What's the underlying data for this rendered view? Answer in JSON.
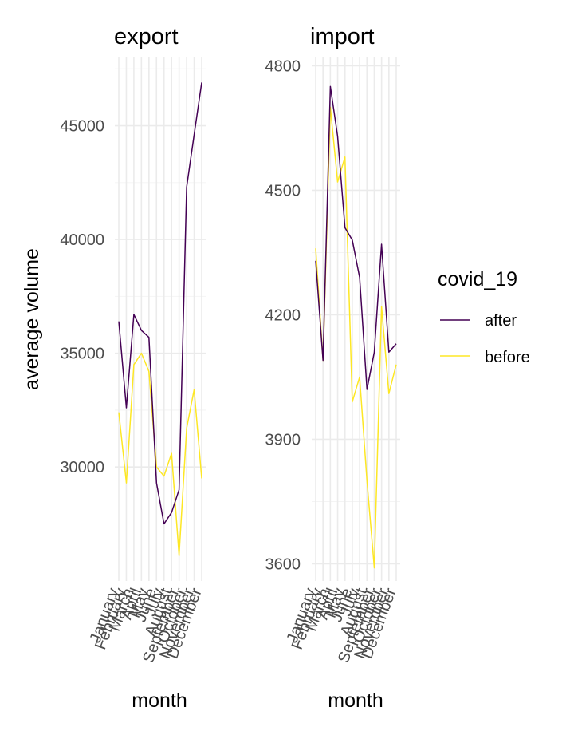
{
  "legend": {
    "title": "covid_19",
    "items": [
      {
        "label": "after",
        "color": "#440154"
      },
      {
        "label": "before",
        "color": "#FDE725"
      }
    ]
  },
  "shared": {
    "ylabel": "average volume",
    "xlabel": "month"
  },
  "chart_data": [
    {
      "type": "line",
      "title": "export",
      "xlabel": "month",
      "ylabel": "average volume",
      "categories": [
        "January",
        "February",
        "March",
        "April",
        "May",
        "June",
        "July",
        "August",
        "September",
        "October",
        "November",
        "December"
      ],
      "ylim": [
        25200,
        48000
      ],
      "yticks": [
        30000,
        35000,
        40000,
        45000
      ],
      "grid": true,
      "series": [
        {
          "name": "after",
          "color": "#440154",
          "values": [
            36400,
            32600,
            36700,
            36000,
            35700,
            29300,
            27500,
            28000,
            29000,
            42300,
            44600,
            46900
          ]
        },
        {
          "name": "before",
          "color": "#FDE725",
          "values": [
            32400,
            29300,
            34500,
            35000,
            34200,
            30000,
            29600,
            30600,
            26100,
            31700,
            33400,
            29500
          ]
        }
      ]
    },
    {
      "type": "line",
      "title": "import",
      "xlabel": "month",
      "ylabel": "",
      "categories": [
        "January",
        "February",
        "March",
        "April",
        "May",
        "June",
        "July",
        "August",
        "September",
        "October",
        "November",
        "December"
      ],
      "ylim": [
        3570,
        4820
      ],
      "yticks": [
        3600,
        3900,
        4200,
        4500,
        4800
      ],
      "grid": true,
      "series": [
        {
          "name": "after",
          "color": "#440154",
          "values": [
            4330,
            4090,
            4750,
            4630,
            4410,
            4380,
            4290,
            4020,
            4110,
            4370,
            4110,
            4130
          ]
        },
        {
          "name": "before",
          "color": "#FDE725",
          "values": [
            4360,
            4090,
            4700,
            4520,
            4580,
            3990,
            4050,
            3800,
            3590,
            4220,
            4010,
            4080
          ]
        }
      ]
    }
  ]
}
